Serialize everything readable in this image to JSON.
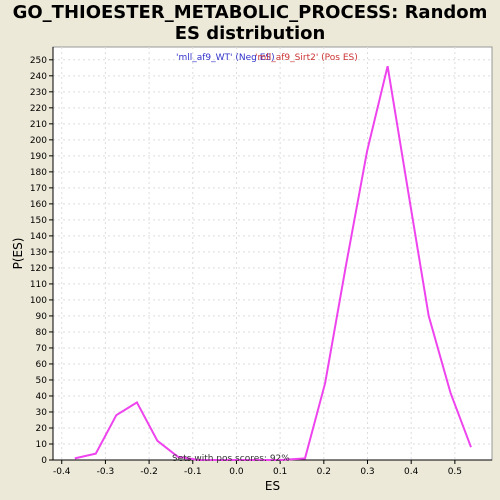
{
  "chart_data": {
    "type": "line",
    "title_line1": "GO_THIOESTER_METABOLIC_PROCESS: Random",
    "title_line2": "ES distribution",
    "xlabel": "ES",
    "ylabel": "P(ES)",
    "xlim": [
      -0.42,
      0.585
    ],
    "ylim": [
      0,
      258
    ],
    "x_ticks": [
      -0.4,
      -0.3,
      -0.2,
      -0.1,
      0.0,
      0.1,
      0.2,
      0.3,
      0.4,
      0.5
    ],
    "x_tick_labels": [
      "-0.4",
      "-0.3",
      "-0.2",
      "-0.1",
      "0.0",
      "0.1",
      "0.2",
      "0.3",
      "0.4",
      "0.5"
    ],
    "y_ticks": [
      0,
      10,
      20,
      30,
      40,
      50,
      60,
      70,
      80,
      90,
      100,
      110,
      120,
      130,
      140,
      150,
      160,
      170,
      180,
      190,
      200,
      210,
      220,
      230,
      240,
      250
    ],
    "grid": true,
    "legend": [
      {
        "label": "'mll_af9_WT' (Neg ES)",
        "color": "#3333cc"
      },
      {
        "label": "'mll_af9_Sirt2' (Pos ES)",
        "color": "#cc3333"
      }
    ],
    "annotation": "Sets with pos scores: 92%",
    "series": [
      {
        "color": "#ee44ee",
        "x": [
          -0.37,
          -0.322,
          -0.275,
          -0.228,
          -0.181,
          -0.134,
          -0.087,
          0.102,
          0.157,
          0.203,
          0.251,
          0.299,
          0.346,
          0.393,
          0.44,
          0.49,
          0.537
        ],
        "y": [
          1,
          4,
          28,
          36,
          12,
          2,
          0,
          0,
          1,
          48,
          122,
          193,
          246,
          168,
          90,
          42,
          8
        ]
      }
    ]
  }
}
